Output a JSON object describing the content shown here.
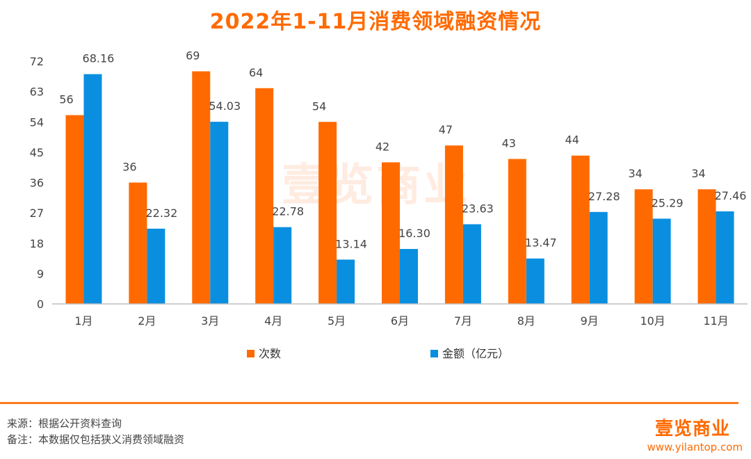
{
  "title": "2022年1-11月消费领域融资情况",
  "chart_data": {
    "type": "bar",
    "categories": [
      "1月",
      "2月",
      "3月",
      "4月",
      "5月",
      "6月",
      "7月",
      "8月",
      "9月",
      "10月",
      "11月"
    ],
    "series": [
      {
        "name": "次数",
        "values": [
          56,
          36,
          69,
          64,
          54,
          42,
          47,
          43,
          44,
          34,
          34
        ],
        "labels": [
          "56",
          "36",
          "69",
          "64",
          "54",
          "42",
          "47",
          "43",
          "44",
          "34",
          "34"
        ],
        "color": "#ff6a00"
      },
      {
        "name": "金额（亿元）",
        "values": [
          68.16,
          22.32,
          54.03,
          22.78,
          13.14,
          16.3,
          23.63,
          13.47,
          27.28,
          25.29,
          27.46
        ],
        "labels": [
          "68.16",
          "22.32",
          "54.03",
          "22.78",
          "13.14",
          "16.30",
          "23.63",
          "13.47",
          "27.28",
          "25.29",
          "27.46"
        ],
        "color": "#0a8fe0"
      }
    ],
    "yticks": [
      "0",
      "9",
      "18",
      "27",
      "36",
      "45",
      "54",
      "63",
      "72"
    ],
    "ylim": [
      0,
      72
    ],
    "legend_position": "bottom"
  },
  "footer": {
    "source": "来源：根据公开资料查询",
    "note": "备注：本数据仅包括狭义消费领域融资",
    "logo": "壹览商业",
    "site": "www.yilantop.com"
  },
  "watermark": "壹览商业"
}
